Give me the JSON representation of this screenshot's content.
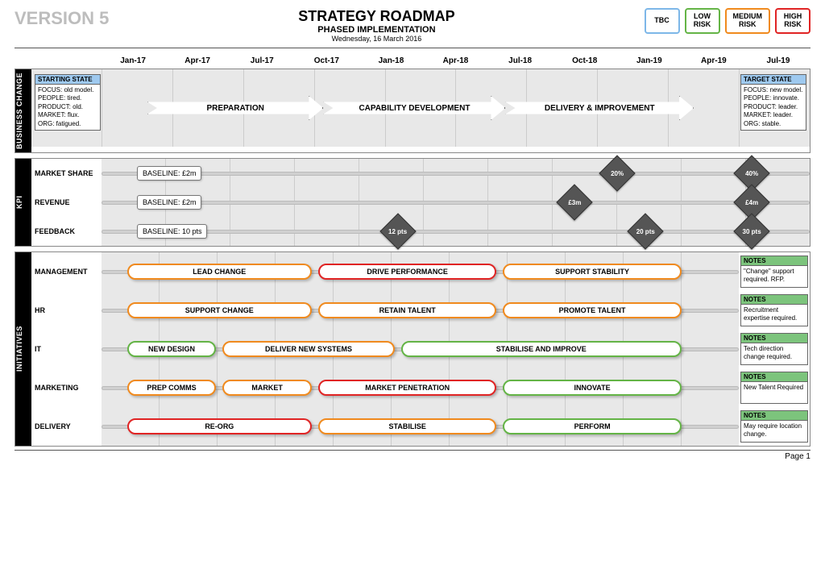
{
  "colors": {
    "tbc": "#7db7e8",
    "low": "#64b446",
    "medium": "#f08a1e",
    "high": "#e02424",
    "diamond": "#555555",
    "gridbg": "#e8e8e8",
    "notes_header": "#7cc47c",
    "state_header": "#9ec9ef"
  },
  "header": {
    "version": "VERSION 5",
    "title": "STRATEGY ROADMAP",
    "subtitle": "PHASED IMPLEMENTATION",
    "date": "Wednesday, 16 March 2016"
  },
  "legend": [
    {
      "label": "TBC",
      "color": "#7db7e8"
    },
    {
      "label": "LOW\nRISK",
      "color": "#64b446"
    },
    {
      "label": "MEDIUM\nRISK",
      "color": "#f08a1e"
    },
    {
      "label": "HIGH\nRISK",
      "color": "#e02424"
    }
  ],
  "timeline": [
    "Jan-17",
    "Apr-17",
    "Jul-17",
    "Oct-17",
    "Jan-18",
    "Apr-18",
    "Jul-18",
    "Oct-18",
    "Jan-19",
    "Apr-19",
    "Jul-19"
  ],
  "business_change": {
    "tab": "BUSINESS CHANGE",
    "starting": {
      "title": "STARTING STATE",
      "lines": [
        "FOCUS: old model.",
        "PEOPLE: tired.",
        "PRODUCT: old.",
        "MARKET: flux.",
        "ORG: fatigued."
      ]
    },
    "target": {
      "title": "TARGET STATE",
      "lines": [
        "FOCUS: new model.",
        "PEOPLE: innovate.",
        "PRODUCT: leader.",
        "MARKET: leader.",
        "ORG: stable."
      ]
    },
    "phases": [
      {
        "label": "PREPARATION",
        "left_pct": 5,
        "width_pct": 29
      },
      {
        "label": "CAPABILITY DEVELOPMENT",
        "left_pct": 34,
        "width_pct": 30
      },
      {
        "label": "DELIVERY & IMPROVEMENT",
        "left_pct": 64,
        "width_pct": 31
      }
    ]
  },
  "kpi": {
    "tab": "KPI",
    "rows": [
      {
        "label": "MARKET SHARE",
        "baseline": "BASELINE: £2m",
        "bl_left_pct": 5,
        "markers": [
          {
            "text": "20%",
            "left_pct": 71
          },
          {
            "text": "40%",
            "left_pct": 90
          }
        ]
      },
      {
        "label": "REVENUE",
        "baseline": "BASELINE: £2m",
        "bl_left_pct": 5,
        "markers": [
          {
            "text": "£3m",
            "left_pct": 65
          },
          {
            "text": "£4m",
            "left_pct": 90
          }
        ]
      },
      {
        "label": "FEEDBACK",
        "baseline": "BASELINE: 10 pts",
        "bl_left_pct": 5,
        "markers": [
          {
            "text": "12 pts",
            "left_pct": 40
          },
          {
            "text": "20 pts",
            "left_pct": 75
          },
          {
            "text": "30 pts",
            "left_pct": 90
          }
        ]
      }
    ]
  },
  "initiatives": {
    "tab": "INITIATIVES",
    "rows": [
      {
        "label": "MANAGEMENT",
        "note_title": "NOTES",
        "note": "\"Change\" support required. RFP.",
        "bars": [
          {
            "label": "LEAD CHANGE",
            "left_pct": 4,
            "width_pct": 29,
            "risk": "medium"
          },
          {
            "label": "DRIVE PERFORMANCE",
            "left_pct": 34,
            "width_pct": 28,
            "risk": "high"
          },
          {
            "label": "SUPPORT STABILITY",
            "left_pct": 63,
            "width_pct": 28,
            "risk": "medium"
          }
        ]
      },
      {
        "label": "HR",
        "note_title": "NOTES",
        "note": "Recruitment expertise required.",
        "bars": [
          {
            "label": "SUPPORT CHANGE",
            "left_pct": 4,
            "width_pct": 29,
            "risk": "medium"
          },
          {
            "label": "RETAIN TALENT",
            "left_pct": 34,
            "width_pct": 28,
            "risk": "medium"
          },
          {
            "label": "PROMOTE TALENT",
            "left_pct": 63,
            "width_pct": 28,
            "risk": "medium"
          }
        ]
      },
      {
        "label": "IT",
        "note_title": "NOTES",
        "note": "Tech direction change required.",
        "bars": [
          {
            "label": "NEW DESIGN",
            "left_pct": 4,
            "width_pct": 14,
            "risk": "low"
          },
          {
            "label": "DELIVER NEW SYSTEMS",
            "left_pct": 19,
            "width_pct": 27,
            "risk": "medium"
          },
          {
            "label": "STABILISE AND IMPROVE",
            "left_pct": 47,
            "width_pct": 44,
            "risk": "low"
          }
        ]
      },
      {
        "label": "MARKETING",
        "note_title": "NOTES",
        "note": "New Talent Required",
        "bars": [
          {
            "label": "PREP COMMS",
            "left_pct": 4,
            "width_pct": 14,
            "risk": "medium"
          },
          {
            "label": "MARKET",
            "left_pct": 19,
            "width_pct": 14,
            "risk": "medium"
          },
          {
            "label": "MARKET PENETRATION",
            "left_pct": 34,
            "width_pct": 28,
            "risk": "high"
          },
          {
            "label": "INNOVATE",
            "left_pct": 63,
            "width_pct": 28,
            "risk": "low"
          }
        ]
      },
      {
        "label": "DELIVERY",
        "note_title": "NOTES",
        "note": "May require location change.",
        "bars": [
          {
            "label": "RE-ORG",
            "left_pct": 4,
            "width_pct": 29,
            "risk": "high"
          },
          {
            "label": "STABILISE",
            "left_pct": 34,
            "width_pct": 28,
            "risk": "medium"
          },
          {
            "label": "PERFORM",
            "left_pct": 63,
            "width_pct": 28,
            "risk": "low"
          }
        ]
      }
    ]
  },
  "footer": {
    "page": "Page 1"
  }
}
